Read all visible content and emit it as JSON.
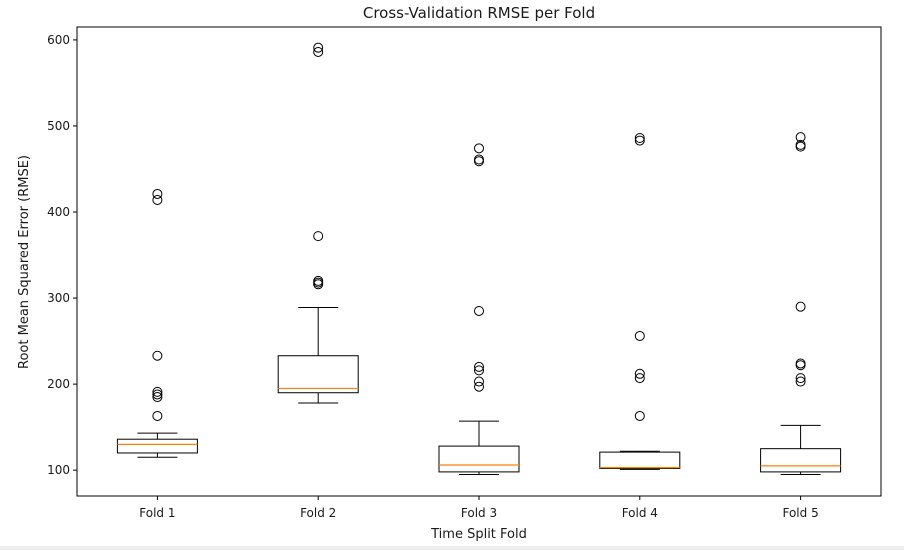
{
  "chart_data": {
    "type": "box",
    "title": "Cross-Validation RMSE per Fold",
    "xlabel": "Time Split Fold",
    "ylabel": "Root Mean Squared Error (RMSE)",
    "ylim": [
      70,
      615
    ],
    "yticks": [
      100,
      200,
      300,
      400,
      500,
      600
    ],
    "categories": [
      "Fold 1",
      "Fold 2",
      "Fold 3",
      "Fold 4",
      "Fold 5"
    ],
    "grid": false,
    "colors": {
      "box": "#000000",
      "median": "#ff7f0e",
      "outlier": "#000000"
    },
    "boxes": [
      {
        "name": "Fold 1",
        "whisker_low": 115,
        "q1": 120,
        "median": 130,
        "q3": 136,
        "whisker_high": 143,
        "outliers": [
          163,
          185,
          188,
          191,
          233,
          414,
          421
        ]
      },
      {
        "name": "Fold 2",
        "whisker_low": 178,
        "q1": 190,
        "median": 195,
        "q3": 233,
        "whisker_high": 289,
        "outliers": [
          316,
          318,
          320,
          372,
          586,
          591
        ]
      },
      {
        "name": "Fold 3",
        "whisker_low": 95,
        "q1": 98,
        "median": 106,
        "q3": 128,
        "whisker_high": 157,
        "outliers": [
          197,
          203,
          216,
          220,
          285,
          459,
          461,
          474
        ]
      },
      {
        "name": "Fold 4",
        "whisker_low": 101,
        "q1": 102,
        "median": 103,
        "q3": 121,
        "whisker_high": 122,
        "outliers": [
          163,
          207,
          212,
          256,
          483,
          486
        ]
      },
      {
        "name": "Fold 5",
        "whisker_low": 95,
        "q1": 98,
        "median": 105,
        "q3": 125,
        "whisker_high": 152,
        "outliers": [
          203,
          207,
          222,
          224,
          290,
          476,
          478,
          487
        ]
      }
    ]
  }
}
